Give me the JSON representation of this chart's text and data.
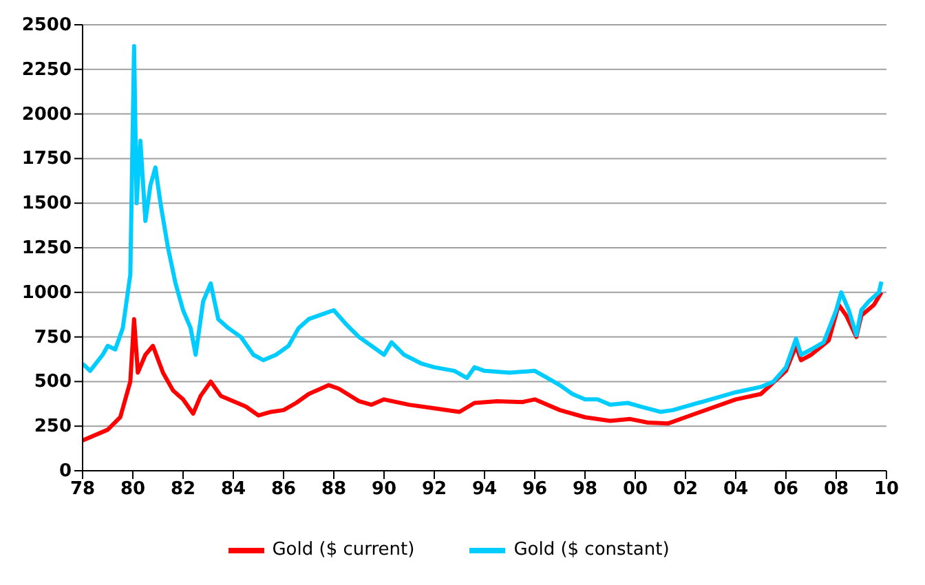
{
  "chart_data": {
    "type": "line",
    "xlim": [
      1978,
      2010
    ],
    "xticks": [
      {
        "value": 1978,
        "label": "78"
      },
      {
        "value": 1980,
        "label": "80"
      },
      {
        "value": 1982,
        "label": "82"
      },
      {
        "value": 1984,
        "label": "84"
      },
      {
        "value": 1986,
        "label": "86"
      },
      {
        "value": 1988,
        "label": "88"
      },
      {
        "value": 1990,
        "label": "90"
      },
      {
        "value": 1992,
        "label": "92"
      },
      {
        "value": 1994,
        "label": "94"
      },
      {
        "value": 1996,
        "label": "96"
      },
      {
        "value": 1998,
        "label": "98"
      },
      {
        "value": 2000,
        "label": "00"
      },
      {
        "value": 2002,
        "label": "02"
      },
      {
        "value": 2004,
        "label": "04"
      },
      {
        "value": 2006,
        "label": "06"
      },
      {
        "value": 2008,
        "label": "08"
      },
      {
        "value": 2010,
        "label": "10"
      }
    ],
    "ylim": [
      0,
      2500
    ],
    "yticks": [
      0,
      250,
      500,
      750,
      1000,
      1250,
      1500,
      1750,
      2000,
      2250,
      2500
    ],
    "grid": "y",
    "legend": "bottom",
    "marker": "none",
    "line_style": "solid",
    "series": [
      {
        "name": "Gold ($ current)",
        "color": "#ff0000",
        "x": [
          1978.0,
          1979.0,
          1979.5,
          1979.9,
          1980.05,
          1980.2,
          1980.5,
          1980.8,
          1981.2,
          1981.6,
          1982.0,
          1982.4,
          1982.7,
          1983.1,
          1983.5,
          1984.0,
          1984.5,
          1985.0,
          1985.5,
          1986.0,
          1986.5,
          1987.0,
          1987.8,
          1988.2,
          1989.0,
          1989.5,
          1990.0,
          1991.0,
          1992.0,
          1993.0,
          1993.6,
          1994.5,
          1995.5,
          1996.0,
          1997.0,
          1998.0,
          1999.0,
          1999.8,
          2000.5,
          2001.3,
          2002.0,
          2003.0,
          2004.0,
          2005.0,
          2006.0,
          2006.4,
          2006.6,
          2007.0,
          2007.7,
          2008.1,
          2008.4,
          2008.8,
          2009.0,
          2009.5,
          2009.8
        ],
        "values": [
          170,
          230,
          300,
          500,
          850,
          550,
          650,
          700,
          550,
          450,
          400,
          320,
          420,
          500,
          420,
          390,
          360,
          310,
          330,
          340,
          380,
          430,
          480,
          460,
          390,
          370,
          400,
          370,
          350,
          330,
          380,
          390,
          385,
          400,
          340,
          300,
          280,
          290,
          270,
          265,
          300,
          350,
          400,
          430,
          560,
          700,
          620,
          650,
          730,
          930,
          870,
          750,
          870,
          930,
          1000
        ]
      },
      {
        "name": "Gold ($ constant)",
        "color": "#00ccff",
        "x": [
          1978.0,
          1978.3,
          1978.8,
          1979.0,
          1979.3,
          1979.6,
          1979.9,
          1980.05,
          1980.15,
          1980.3,
          1980.5,
          1980.7,
          1980.9,
          1981.1,
          1981.4,
          1981.7,
          1982.0,
          1982.3,
          1982.5,
          1982.8,
          1983.1,
          1983.4,
          1983.8,
          1984.3,
          1984.8,
          1985.2,
          1985.7,
          1986.2,
          1986.6,
          1987.0,
          1987.6,
          1988.0,
          1988.5,
          1989.0,
          1989.5,
          1990.0,
          1990.3,
          1990.8,
          1991.5,
          1992.0,
          1992.8,
          1993.3,
          1993.6,
          1994.0,
          1995.0,
          1996.0,
          1996.5,
          1997.0,
          1997.5,
          1998.0,
          1998.5,
          1999.0,
          1999.7,
          2000.2,
          2001.0,
          2001.5,
          2002.0,
          2003.0,
          2004.0,
          2005.0,
          2005.5,
          2006.0,
          2006.4,
          2006.6,
          2007.0,
          2007.5,
          2008.0,
          2008.2,
          2008.5,
          2008.8,
          2009.0,
          2009.3,
          2009.7,
          2009.8
        ],
        "values": [
          600,
          560,
          650,
          700,
          680,
          800,
          1100,
          2380,
          1500,
          1850,
          1400,
          1600,
          1700,
          1500,
          1250,
          1050,
          900,
          800,
          650,
          950,
          1050,
          850,
          800,
          750,
          650,
          620,
          650,
          700,
          800,
          850,
          880,
          900,
          820,
          750,
          700,
          650,
          720,
          650,
          600,
          580,
          560,
          520,
          580,
          560,
          550,
          560,
          520,
          480,
          430,
          400,
          400,
          370,
          380,
          360,
          330,
          340,
          360,
          400,
          440,
          470,
          500,
          580,
          740,
          650,
          680,
          720,
          900,
          1000,
          900,
          760,
          900,
          950,
          1000,
          1060
        ]
      }
    ]
  }
}
